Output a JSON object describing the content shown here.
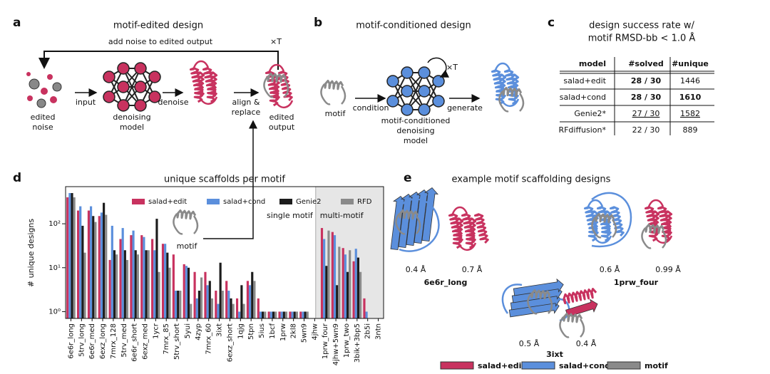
{
  "letters": [
    "a",
    "b",
    "c",
    "d",
    "e"
  ],
  "a": {
    "title": "motif-edited design",
    "loop": "add noise to edited output",
    "repeat": "×T",
    "noise": [
      "edited",
      "noise"
    ],
    "input": "input",
    "model": [
      "denoising",
      "model"
    ],
    "denoise": "denoise",
    "align": [
      "align &",
      "replace"
    ],
    "output": [
      "edited",
      "output"
    ],
    "motif": "motif"
  },
  "b": {
    "title": "motif-conditioned design",
    "motif": "motif",
    "condition": "condition",
    "model": [
      "motif-conditioned",
      "denoising",
      "model"
    ],
    "repeat": "×T",
    "generate": "generate"
  },
  "c": {
    "title": [
      "design success rate w/",
      "motif RMSD-bb < 1.0 Å"
    ],
    "header": [
      "model",
      "#solved",
      "#unique"
    ],
    "rows": [
      [
        "salad+edit",
        "28 / 30",
        1446
      ],
      [
        "salad+cond",
        "28 / 30",
        1610
      ],
      [
        "Genie2*",
        "27 / 30",
        1582
      ],
      [
        "RFdiffusion*",
        "22 / 30",
        889
      ]
    ]
  },
  "chart_data": {
    "type": "bar",
    "title": "unique scaffolds per motif",
    "ylabel": "# unique designs",
    "log_scale": true,
    "annotations": [
      "single motif",
      "multi-motif"
    ],
    "legend": "top-right",
    "ylim": [
      0.7,
      700
    ],
    "yticks": [
      {
        "value": 1,
        "label": "10⁰"
      },
      {
        "value": 10,
        "label": "10¹"
      },
      {
        "value": 100,
        "label": "10²"
      }
    ],
    "categories": [
      "6e6r_long",
      "5trv_long",
      "6e6r_med",
      "6exz_long",
      "7mrx_128",
      "5trv_med",
      "6e6r_short",
      "6exz_med",
      "1ycr",
      "7mrx_85",
      "5trv_short",
      "5yui",
      "4zyp",
      "7mrx_60",
      "3ixt",
      "6exz_short",
      "1qjg",
      "5tpn",
      "5ius",
      "1bcf",
      "1prw",
      "2kl8",
      "5wn9",
      "4jhw",
      "1prw_four",
      "4jhw+5wn9",
      "1prw_two",
      "3bik+3bp5",
      "2b5i",
      "3ntn"
    ],
    "series": [
      {
        "name": "salad+edit",
        "color": "#c8325f",
        "values": [
          400,
          200,
          200,
          150,
          15,
          45,
          55,
          55,
          45,
          35,
          20,
          12,
          8,
          8,
          3,
          5,
          2,
          5,
          2,
          1,
          1,
          1,
          1,
          null,
          80,
          65,
          28,
          14,
          2,
          null
        ]
      },
      {
        "name": "salad+cond",
        "color": "#5b8fdc",
        "values": [
          500,
          250,
          250,
          180,
          90,
          80,
          70,
          50,
          25,
          35,
          3,
          11,
          2,
          4,
          1.5,
          3,
          1,
          4,
          1,
          1,
          1,
          1,
          1,
          null,
          45,
          55,
          20,
          27,
          1,
          null
        ]
      },
      {
        "name": "Genie2",
        "color": "#1c1c1c",
        "values": [
          500,
          90,
          150,
          300,
          25,
          25,
          25,
          25,
          130,
          22,
          3,
          10,
          3,
          5,
          13,
          2,
          4,
          8,
          1,
          1,
          1,
          1,
          1,
          null,
          11,
          4,
          8,
          17,
          null,
          null
        ]
      },
      {
        "name": "RFD",
        "color": "#8a8a8a",
        "values": [
          400,
          22,
          110,
          160,
          20,
          15,
          20,
          25,
          8,
          10,
          3,
          1.5,
          6,
          2,
          3,
          1.5,
          1.5,
          5,
          1,
          1,
          1,
          1,
          1,
          null,
          70,
          30,
          25,
          8,
          null,
          null
        ]
      }
    ]
  },
  "e": {
    "title": "example motif scaffolding designs",
    "examples": [
      {
        "name": "6e6r_long",
        "rmsd": [
          "0.4 Å",
          "0.7 Å"
        ]
      },
      {
        "name": "1prw_four",
        "rmsd": [
          "0.6 Å",
          "0.99 Å"
        ]
      },
      {
        "name": "3ixt",
        "rmsd": [
          "0.5 Å",
          "0.4 Å"
        ]
      }
    ],
    "legend": [
      "salad+edit",
      "salad+cond",
      "motif"
    ]
  }
}
